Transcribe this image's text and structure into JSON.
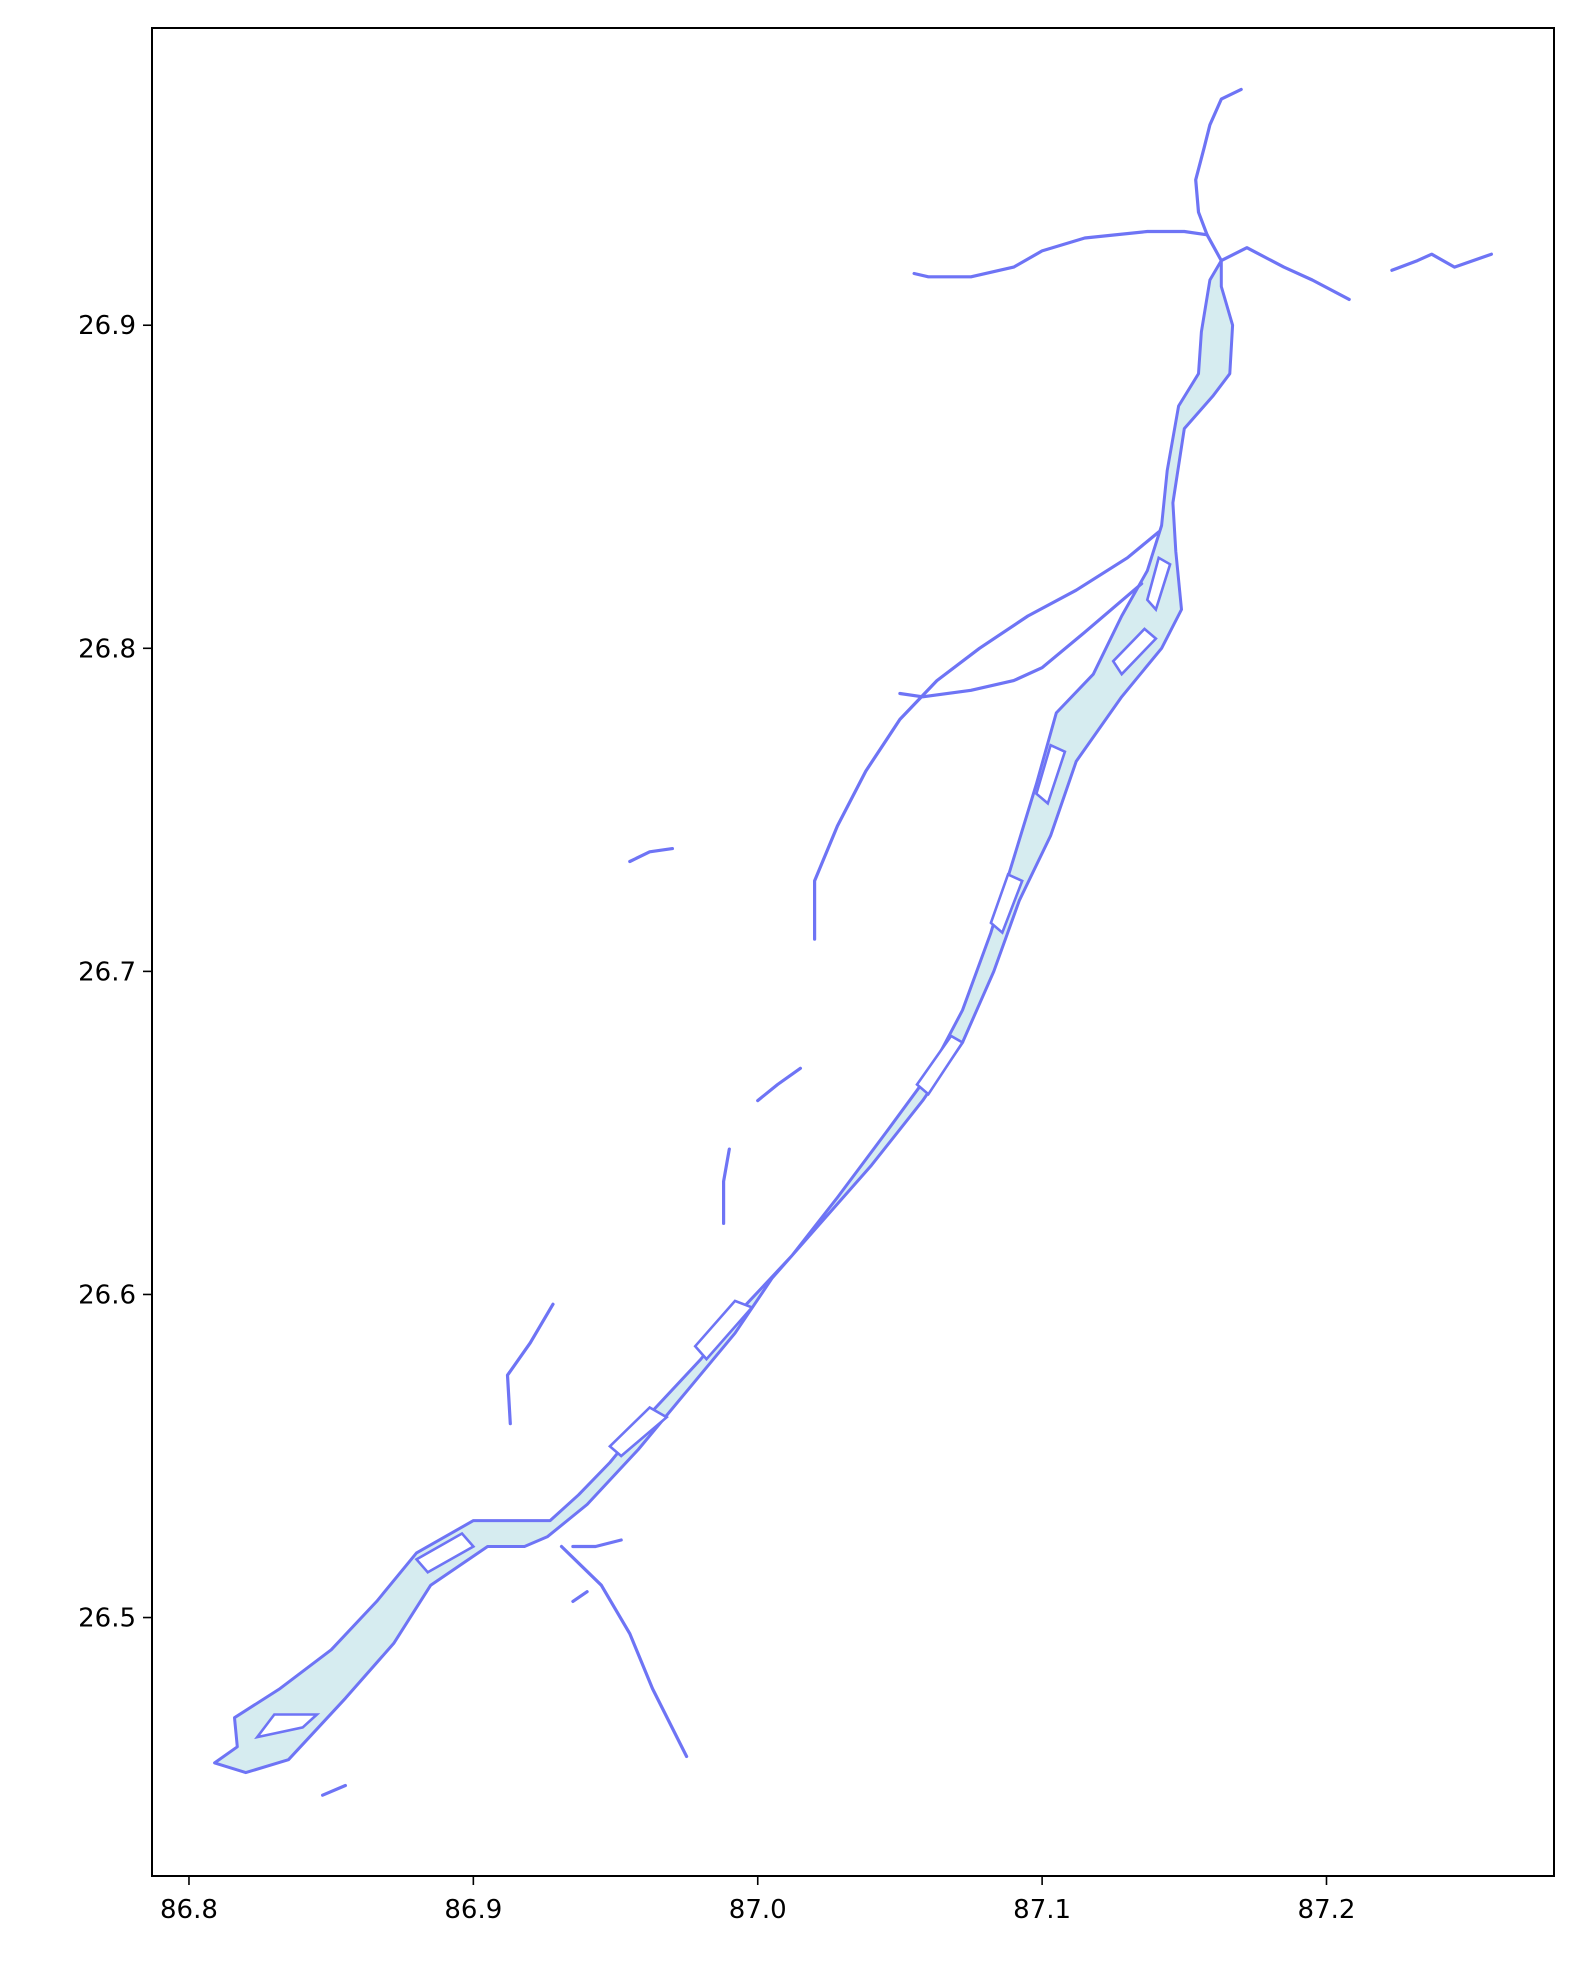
{
  "chart_data": {
    "type": "map",
    "xlim": [
      86.787,
      87.28
    ],
    "ylim": [
      26.42,
      26.992
    ],
    "x_ticks": [
      86.8,
      86.9,
      87.0,
      87.1,
      87.2
    ],
    "x_tick_labels": [
      "86.8",
      "86.9",
      "87.0",
      "87.1",
      "87.2"
    ],
    "y_ticks": [
      26.5,
      26.6,
      26.7,
      26.8,
      26.9
    ],
    "y_tick_labels": [
      "26.5",
      "26.6",
      "26.7",
      "26.8",
      "26.9"
    ],
    "grid": false,
    "colors": {
      "outline": "#6e74f5",
      "fill": "#d6ecf0"
    },
    "main_channel": [
      [
        86.809,
        26.455
      ],
      [
        86.82,
        26.452
      ],
      [
        86.835,
        26.456
      ],
      [
        86.855,
        26.475
      ],
      [
        86.872,
        26.492
      ],
      [
        86.885,
        26.51
      ],
      [
        86.905,
        26.522
      ],
      [
        86.918,
        26.522
      ],
      [
        86.926,
        26.525
      ],
      [
        86.94,
        26.535
      ],
      [
        86.958,
        26.552
      ],
      [
        86.975,
        26.57
      ],
      [
        86.992,
        26.588
      ],
      [
        87.005,
        26.605
      ],
      [
        87.022,
        26.622
      ],
      [
        87.04,
        26.64
      ],
      [
        87.058,
        26.66
      ],
      [
        87.072,
        26.678
      ],
      [
        87.083,
        26.7
      ],
      [
        87.092,
        26.722
      ],
      [
        87.103,
        26.742
      ],
      [
        87.112,
        26.765
      ],
      [
        87.128,
        26.785
      ],
      [
        87.142,
        26.8
      ],
      [
        87.149,
        26.812
      ],
      [
        87.147,
        26.83
      ],
      [
        87.146,
        26.845
      ],
      [
        87.15,
        26.868
      ],
      [
        87.16,
        26.878
      ],
      [
        87.166,
        26.885
      ],
      [
        87.167,
        26.9
      ],
      [
        87.163,
        26.912
      ],
      [
        87.163,
        26.92
      ],
      [
        87.159,
        26.914
      ],
      [
        87.156,
        26.898
      ],
      [
        87.155,
        26.885
      ],
      [
        87.148,
        26.875
      ],
      [
        87.144,
        26.855
      ],
      [
        87.142,
        26.838
      ],
      [
        87.137,
        26.824
      ],
      [
        87.128,
        26.81
      ],
      [
        87.118,
        26.792
      ],
      [
        87.105,
        26.78
      ],
      [
        87.098,
        26.758
      ],
      [
        87.09,
        26.735
      ],
      [
        87.082,
        26.712
      ],
      [
        87.072,
        26.688
      ],
      [
        87.06,
        26.668
      ],
      [
        87.045,
        26.65
      ],
      [
        87.028,
        26.63
      ],
      [
        87.012,
        26.612
      ],
      [
        86.996,
        26.597
      ],
      [
        86.98,
        26.58
      ],
      [
        86.962,
        26.563
      ],
      [
        86.948,
        26.548
      ],
      [
        86.937,
        26.538
      ],
      [
        86.927,
        26.53
      ],
      [
        86.912,
        26.53
      ],
      [
        86.9,
        26.53
      ],
      [
        86.88,
        26.52
      ],
      [
        86.866,
        26.505
      ],
      [
        86.85,
        26.49
      ],
      [
        86.832,
        26.478
      ],
      [
        86.816,
        26.469
      ],
      [
        86.817,
        26.46
      ]
    ],
    "islands": [
      [
        [
          86.824,
          26.463
        ],
        [
          86.84,
          26.466
        ],
        [
          86.845,
          26.47
        ],
        [
          86.83,
          26.47
        ]
      ],
      [
        [
          86.884,
          26.514
        ],
        [
          86.9,
          26.522
        ],
        [
          86.896,
          26.526
        ],
        [
          86.88,
          26.518
        ]
      ],
      [
        [
          86.952,
          26.55
        ],
        [
          86.968,
          26.562
        ],
        [
          86.962,
          26.565
        ],
        [
          86.948,
          26.553
        ]
      ],
      [
        [
          86.982,
          26.58
        ],
        [
          86.998,
          26.596
        ],
        [
          86.992,
          26.598
        ],
        [
          86.978,
          26.584
        ]
      ],
      [
        [
          87.06,
          26.662
        ],
        [
          87.072,
          26.678
        ],
        [
          87.068,
          26.68
        ],
        [
          87.056,
          26.665
        ]
      ],
      [
        [
          87.086,
          26.712
        ],
        [
          87.093,
          26.728
        ],
        [
          87.088,
          26.73
        ],
        [
          87.082,
          26.715
        ]
      ],
      [
        [
          87.102,
          26.752
        ],
        [
          87.108,
          26.768
        ],
        [
          87.103,
          26.77
        ],
        [
          87.098,
          26.755
        ]
      ],
      [
        [
          87.128,
          26.792
        ],
        [
          87.14,
          26.803
        ],
        [
          87.136,
          26.806
        ],
        [
          87.125,
          26.796
        ]
      ],
      [
        [
          87.14,
          26.812
        ],
        [
          87.145,
          26.826
        ],
        [
          87.141,
          26.828
        ],
        [
          87.137,
          26.815
        ]
      ]
    ],
    "channels": [
      [
        [
          87.163,
          26.92
        ],
        [
          87.158,
          26.928
        ],
        [
          87.15,
          26.929
        ],
        [
          87.137,
          26.929
        ],
        [
          87.115,
          26.927
        ],
        [
          87.1,
          26.923
        ],
        [
          87.09,
          26.918
        ],
        [
          87.075,
          26.915
        ],
        [
          87.06,
          26.915
        ],
        [
          87.055,
          26.916
        ]
      ],
      [
        [
          87.163,
          26.92
        ],
        [
          87.172,
          26.924
        ],
        [
          87.185,
          26.918
        ],
        [
          87.195,
          26.914
        ],
        [
          87.208,
          26.908
        ]
      ],
      [
        [
          87.158,
          26.928
        ],
        [
          87.155,
          26.935
        ],
        [
          87.154,
          26.945
        ],
        [
          87.157,
          26.955
        ],
        [
          87.159,
          26.962
        ],
        [
          87.163,
          26.97
        ],
        [
          87.17,
          26.973
        ]
      ],
      [
        [
          87.223,
          26.917
        ],
        [
          87.232,
          26.92
        ],
        [
          87.237,
          26.922
        ],
        [
          87.245,
          26.918
        ],
        [
          87.258,
          26.922
        ]
      ],
      [
        [
          87.141,
          26.836
        ],
        [
          87.13,
          26.828
        ],
        [
          87.112,
          26.818
        ],
        [
          87.095,
          26.81
        ],
        [
          87.078,
          26.8
        ],
        [
          87.063,
          26.79
        ],
        [
          87.05,
          26.778
        ],
        [
          87.038,
          26.762
        ],
        [
          87.028,
          26.745
        ],
        [
          87.02,
          26.728
        ],
        [
          87.02,
          26.71
        ]
      ],
      [
        [
          87.135,
          26.82
        ],
        [
          87.115,
          26.805
        ],
        [
          87.1,
          26.794
        ],
        [
          87.09,
          26.79
        ],
        [
          87.075,
          26.787
        ],
        [
          87.058,
          26.785
        ],
        [
          87.05,
          26.786
        ]
      ],
      [
        [
          86.955,
          26.734
        ],
        [
          86.962,
          26.737
        ],
        [
          86.97,
          26.738
        ]
      ],
      [
        [
          87.0,
          26.66
        ],
        [
          87.007,
          26.665
        ],
        [
          87.015,
          26.67
        ]
      ],
      [
        [
          86.988,
          26.622
        ],
        [
          86.988,
          26.635
        ],
        [
          86.99,
          26.645
        ]
      ],
      [
        [
          86.913,
          26.56
        ],
        [
          86.912,
          26.575
        ],
        [
          86.92,
          26.585
        ],
        [
          86.928,
          26.597
        ]
      ],
      [
        [
          86.931,
          26.522
        ],
        [
          86.945,
          26.51
        ],
        [
          86.955,
          26.495
        ],
        [
          86.963,
          26.478
        ],
        [
          86.975,
          26.457
        ]
      ],
      [
        [
          86.935,
          26.522
        ],
        [
          86.943,
          26.522
        ],
        [
          86.952,
          26.524
        ]
      ],
      [
        [
          86.847,
          26.445
        ],
        [
          86.855,
          26.448
        ]
      ],
      [
        [
          86.935,
          26.505
        ],
        [
          86.94,
          26.508
        ]
      ]
    ]
  }
}
